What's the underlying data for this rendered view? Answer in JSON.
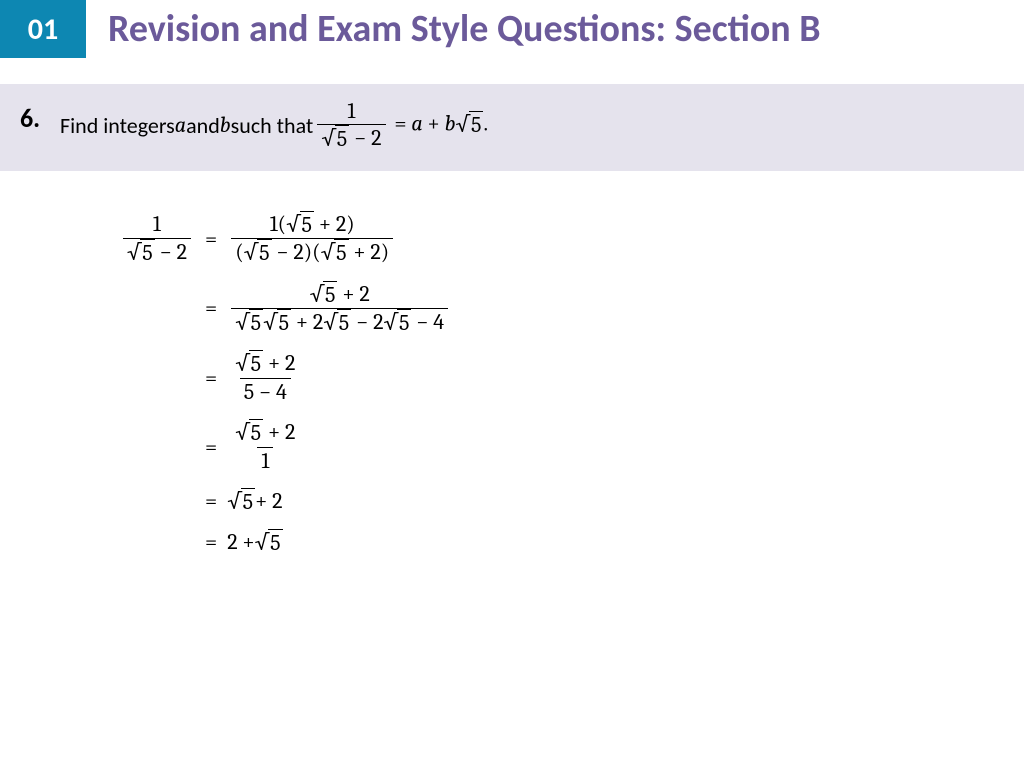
{
  "header": {
    "chapter_number": "01",
    "title": "Revision and Exam Style Questions: Section B",
    "badge_bg_color": "#0d87b2",
    "title_color": "#6b5a9a"
  },
  "question": {
    "number": "6.",
    "prompt_prefix": "Find integers ",
    "var_a": "a",
    "prompt_and": " and ",
    "var_b": "b",
    "prompt_suffix": " such that ",
    "lhs_numerator": "1",
    "lhs_denominator_radicand": "5",
    "lhs_denominator_tail": " − 2",
    "eq": " = ",
    "rhs_a": "a",
    "rhs_plus": " + ",
    "rhs_b": "b",
    "rhs_radicand": "5",
    "period": ".",
    "bar_bg_color": "#e5e3ed"
  },
  "solution": {
    "step1": {
      "lhs_num": "1",
      "lhs_den_rad": "5",
      "lhs_den_tail": " − 2",
      "rhs_num_pre": "1(",
      "rhs_num_rad": "5",
      "rhs_num_tail": " + 2)",
      "rhs_den_open1": "(",
      "rhs_den_rad1": "5",
      "rhs_den_mid1": " − 2)(",
      "rhs_den_rad2": "5",
      "rhs_den_close": " + 2)"
    },
    "step2": {
      "num_rad": "5",
      "num_tail": " + 2",
      "den_rad1": "5",
      "den_rad2": "5",
      "den_mid1": " + 2",
      "den_rad3": "5",
      "den_mid2": " − 2",
      "den_rad4": "5",
      "den_tail": " − 4"
    },
    "step3": {
      "num_rad": "5",
      "num_tail": " + 2",
      "den": "5 − 4"
    },
    "step4": {
      "num_rad": "5",
      "num_tail": " + 2",
      "den": "1"
    },
    "step5": {
      "rad": "5",
      "tail": " + 2"
    },
    "step6": {
      "pre": "2 + ",
      "rad": "5"
    },
    "eq": "="
  }
}
